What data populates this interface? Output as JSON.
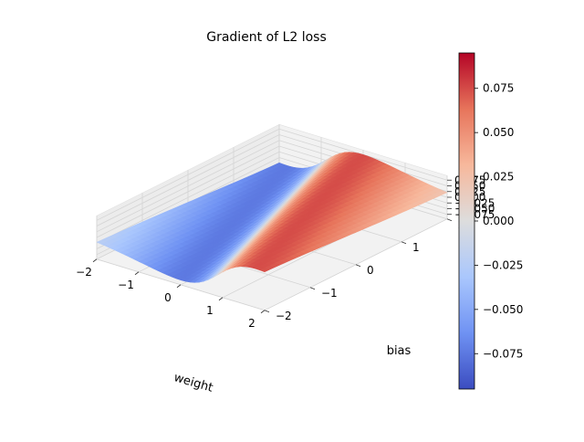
{
  "chart_data": {
    "type": "surface",
    "title": "Gradient of L2 loss",
    "xlabel": "weight",
    "ylabel": "bias",
    "zlabel": "",
    "colormap": "coolwarm",
    "colormap_stops": [
      "#3b4cc0",
      "#6f92f3",
      "#aac7fd",
      "#dddddd",
      "#f7b89c",
      "#e7745b",
      "#b40426"
    ],
    "xlim": [
      -2,
      2
    ],
    "ylim": [
      -2,
      2
    ],
    "zlim": [
      -0.095,
      0.095
    ],
    "xticks": [
      "−2",
      "−1",
      "0",
      "1",
      "2"
    ],
    "yticks": [
      "−2",
      "−1",
      "0",
      "1",
      "2"
    ],
    "zticks": [
      "−0.075",
      "−0.050",
      "−0.025",
      "0.000",
      "0.025",
      "0.050",
      "0.075"
    ],
    "colorbar": {
      "range": [
        -0.095,
        0.095
      ],
      "ticks": [
        "−0.075",
        "−0.050",
        "−0.025",
        "0.000",
        "0.025",
        "0.050",
        "0.075"
      ]
    },
    "grid": true
  }
}
